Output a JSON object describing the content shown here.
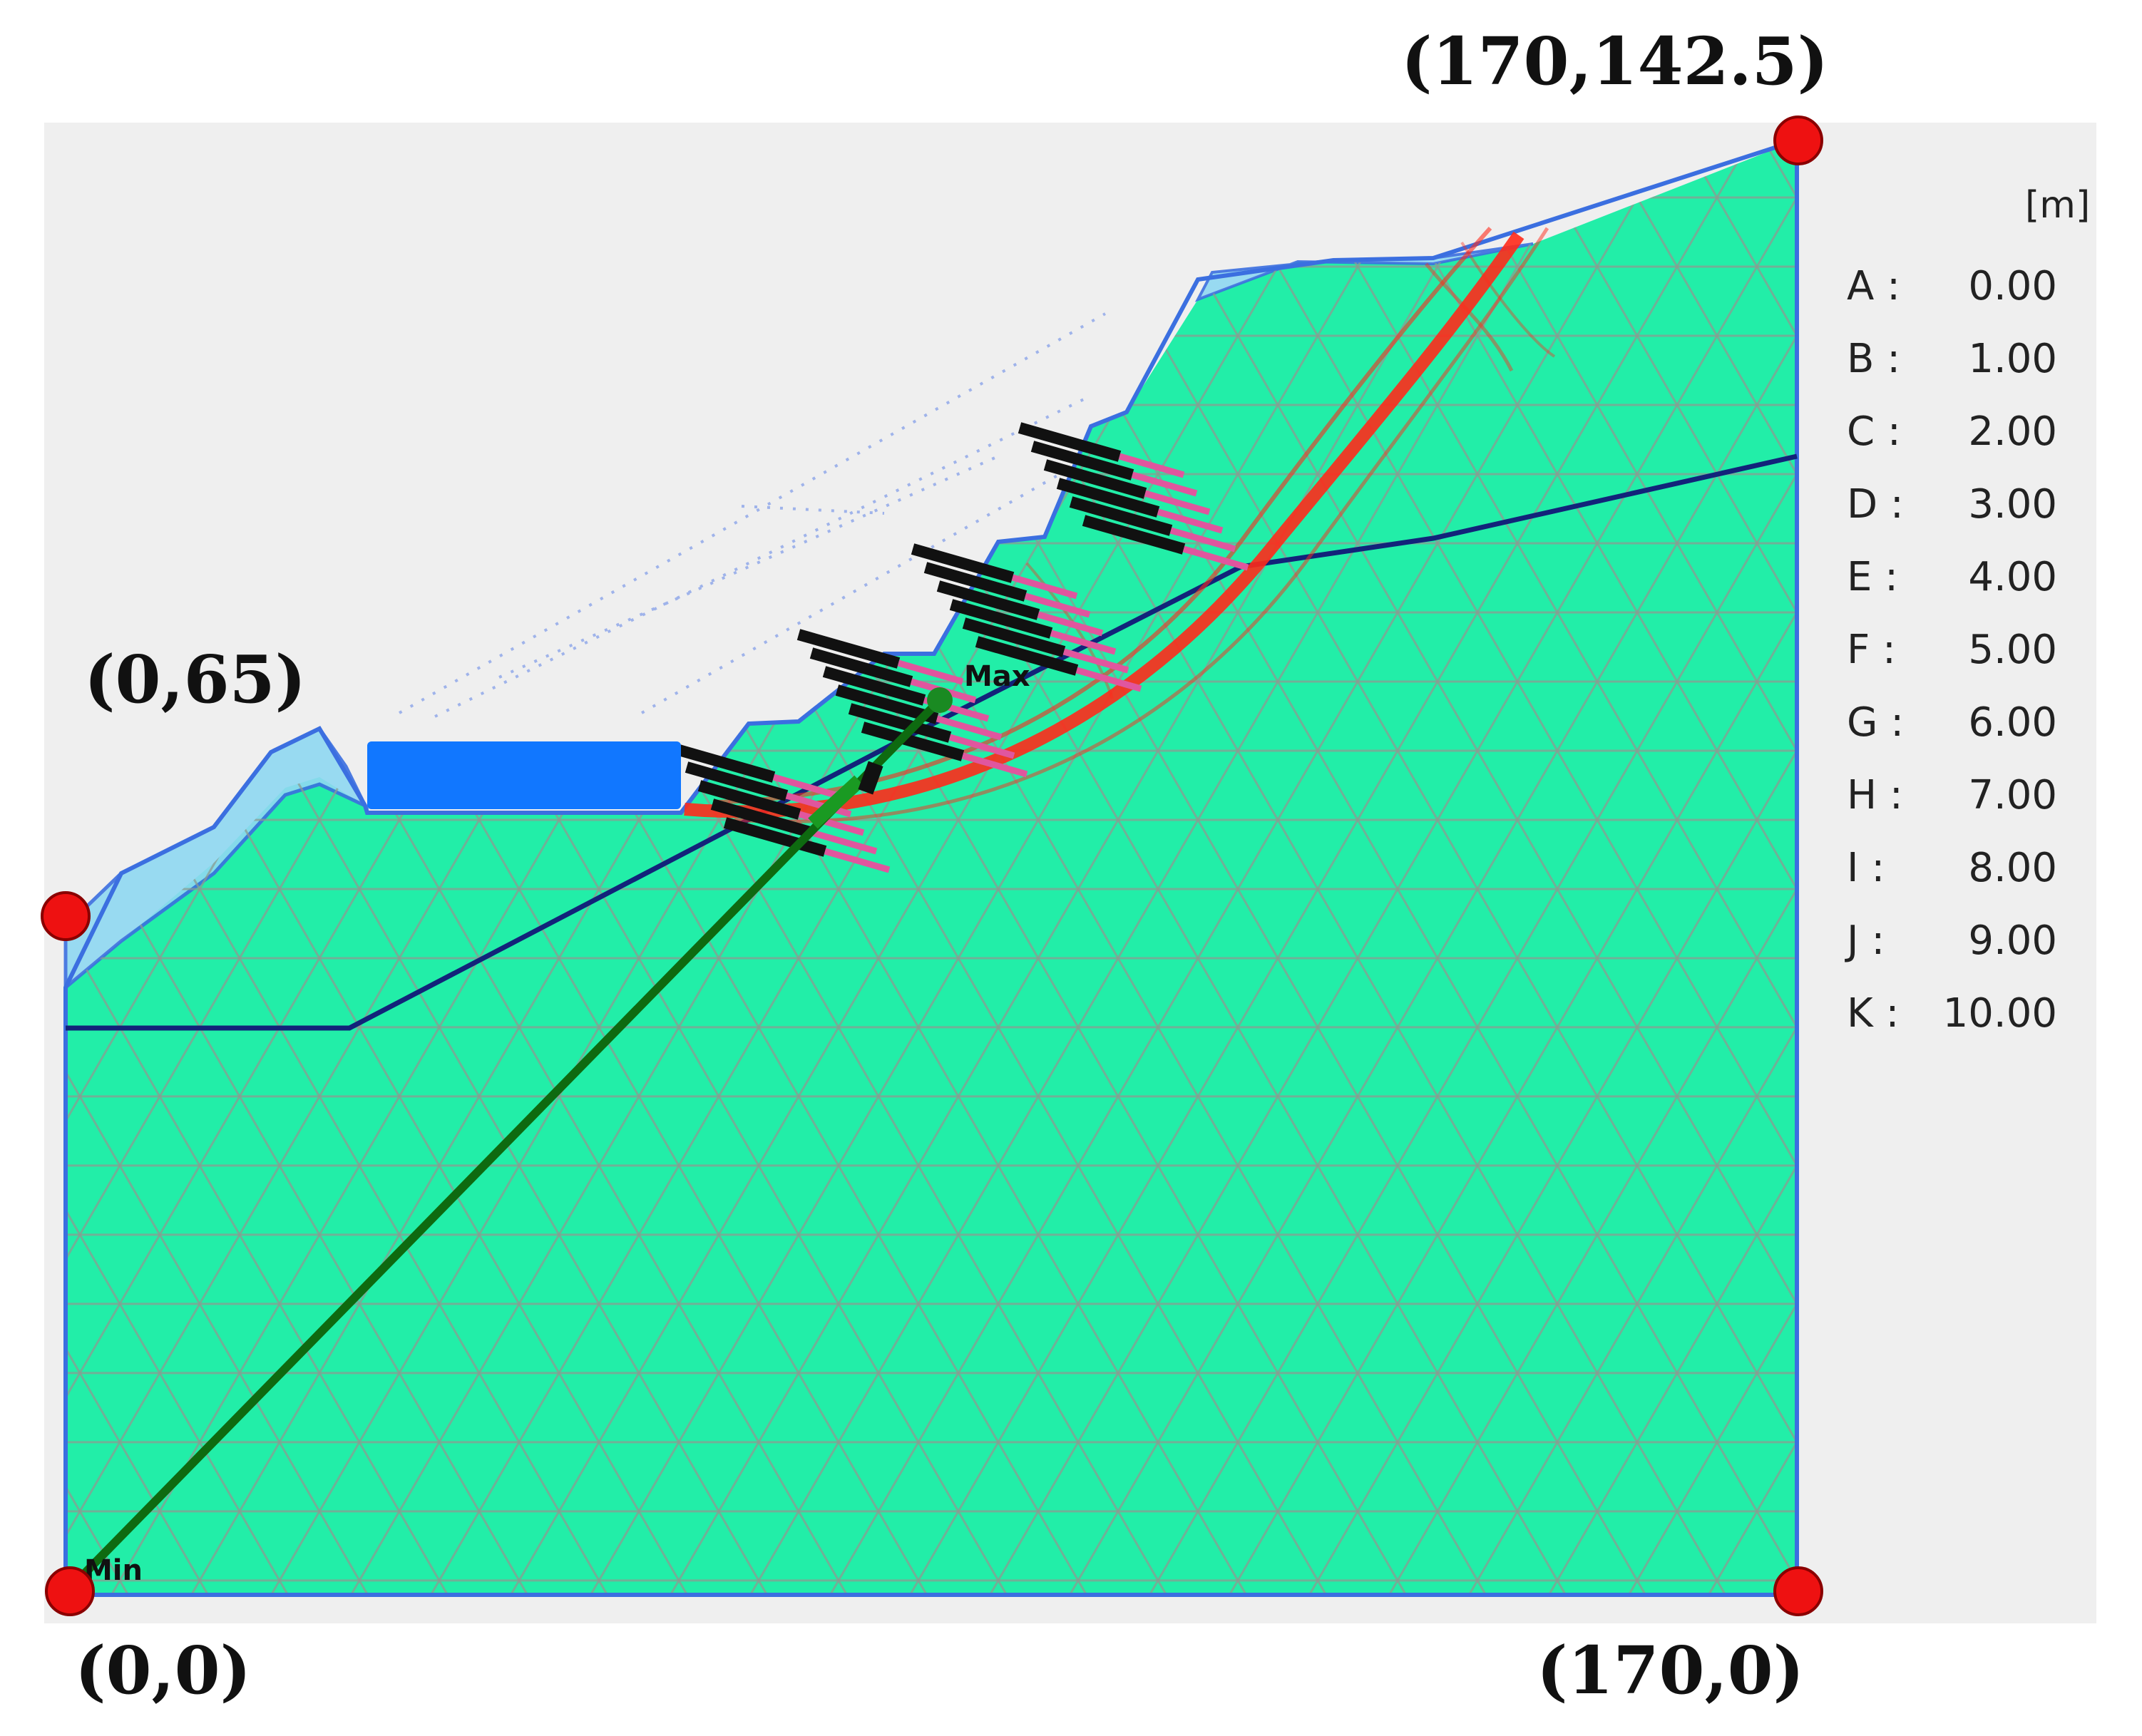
{
  "corners": [
    {
      "id": "top-right",
      "label": "(170,142.5)"
    },
    {
      "id": "left",
      "label": "(0,65)"
    },
    {
      "id": "bottom-left",
      "label": "(0,0)"
    },
    {
      "id": "bottom-right",
      "label": "(170,0)"
    }
  ],
  "legend": {
    "unit": "[m]",
    "items": [
      {
        "key": "A :",
        "value": "0.00"
      },
      {
        "key": "B :",
        "value": "1.00"
      },
      {
        "key": "C :",
        "value": "2.00"
      },
      {
        "key": "D :",
        "value": "3.00"
      },
      {
        "key": "E :",
        "value": "4.00"
      },
      {
        "key": "F :",
        "value": "5.00"
      },
      {
        "key": "G :",
        "value": "6.00"
      },
      {
        "key": "H :",
        "value": "7.00"
      },
      {
        "key": "I :",
        "value": "8.00"
      },
      {
        "key": "J :",
        "value": "9.00"
      },
      {
        "key": "K :",
        "value": "10.00"
      }
    ]
  },
  "markers": {
    "max": "Max",
    "min": "Min"
  },
  "colors": {
    "soil": "#22eea8",
    "panel": "#efefef",
    "boundary": "#3b6fe0",
    "water_table": "#12237a",
    "shear_band": "#ff2a1a",
    "anchors": "#111111",
    "anchor_tail": "#e0569e",
    "load": "#1177ff",
    "section_line": "#0e6a10",
    "corner_point": "#ee1111"
  }
}
